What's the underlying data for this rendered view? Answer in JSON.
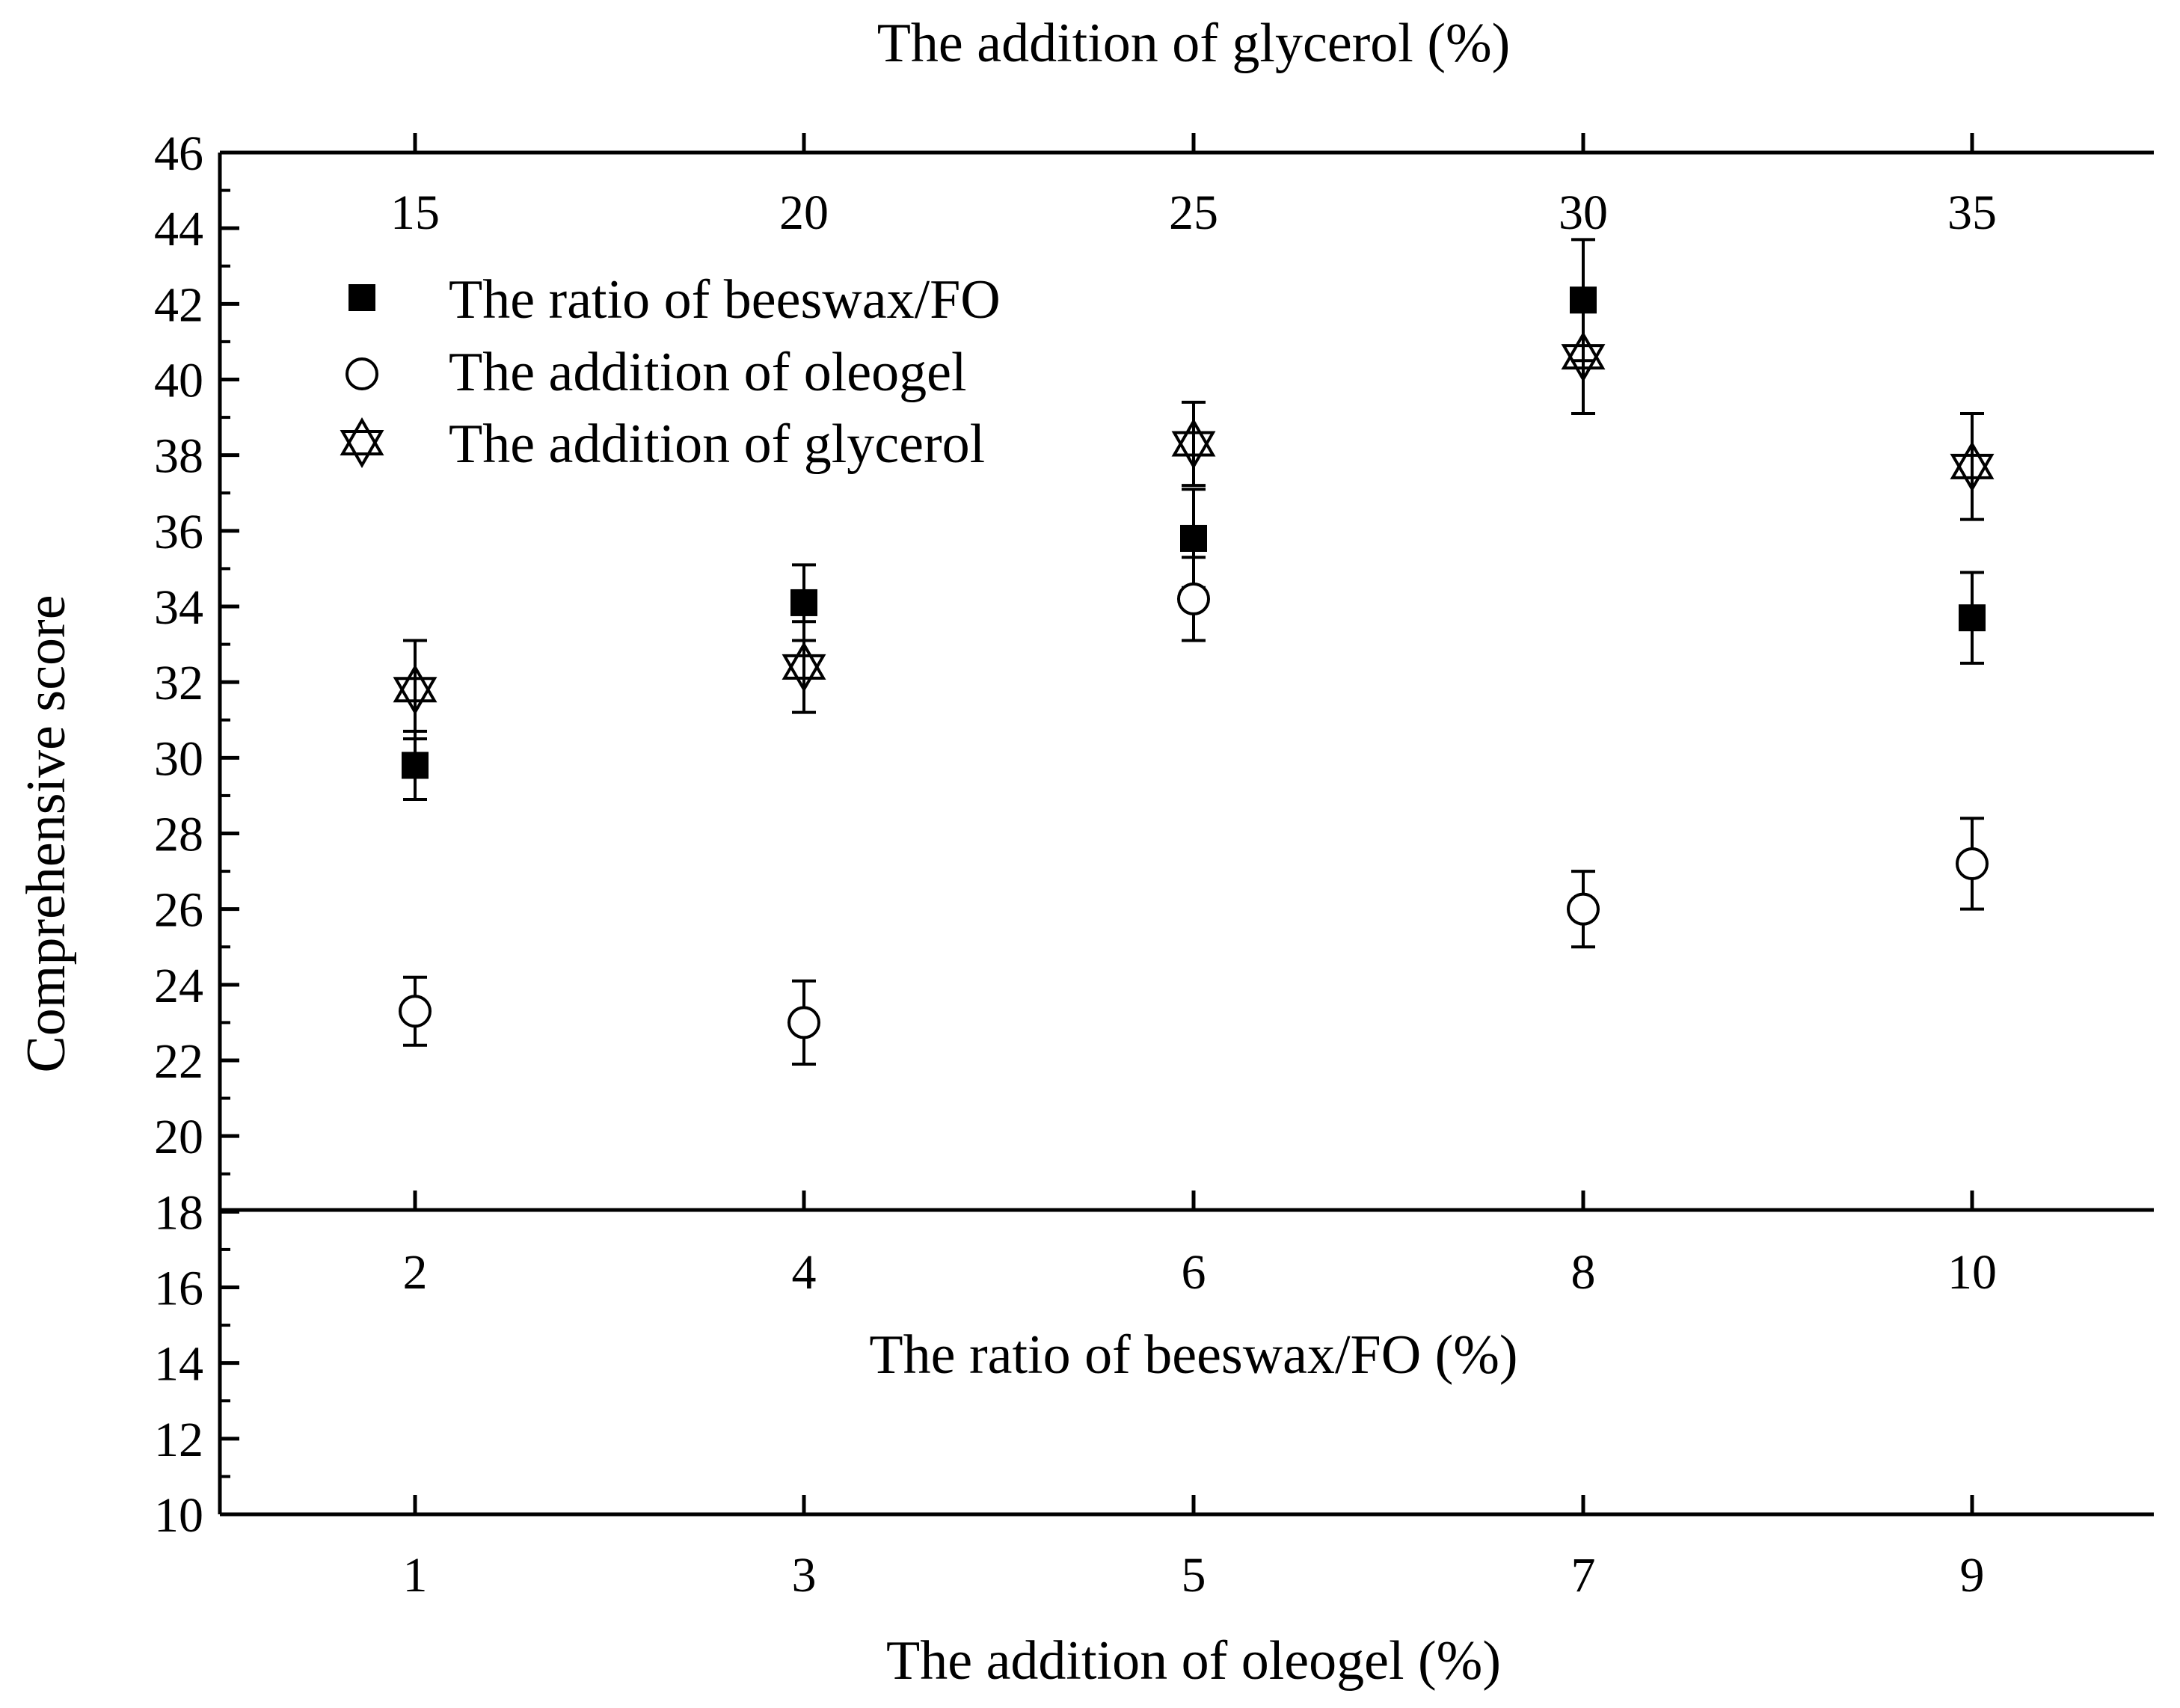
{
  "chart_data": {
    "type": "scatter",
    "ylabel": "Comprehensive score",
    "yticks": [
      10,
      12,
      14,
      16,
      18,
      20,
      22,
      24,
      26,
      28,
      30,
      32,
      34,
      36,
      38,
      40,
      42,
      44,
      46
    ],
    "ylim": [
      10,
      46
    ],
    "x_axes": [
      {
        "id": "top",
        "label": "The addition of glycerol (%)",
        "ticks": [
          "15",
          "20",
          "25",
          "30",
          "35"
        ]
      },
      {
        "id": "middle",
        "label": "The ratio of beeswax/FO (%)",
        "ticks": [
          "2",
          "4",
          "6",
          "8",
          "10"
        ]
      },
      {
        "id": "bottom",
        "label": "The addition of oleogel (%)",
        "ticks": [
          "1",
          "3",
          "5",
          "7",
          "9"
        ]
      }
    ],
    "positions": [
      1,
      2,
      3,
      4,
      5
    ],
    "series": [
      {
        "name": "The ratio of beeswax/FO",
        "marker": "filled-square",
        "axis": "middle",
        "x": [
          "2",
          "4",
          "6",
          "8",
          "10"
        ],
        "y": [
          29.8,
          34.1,
          35.8,
          42.1,
          33.7
        ],
        "err": [
          0.9,
          1.0,
          1.3,
          1.6,
          1.2
        ]
      },
      {
        "name": "The addition of oleogel",
        "marker": "open-circle",
        "axis": "bottom",
        "x": [
          "1",
          "3",
          "5",
          "7",
          "9"
        ],
        "y": [
          23.3,
          23.0,
          34.2,
          26.0,
          27.2
        ],
        "err": [
          0.9,
          1.1,
          1.1,
          1.0,
          1.2
        ]
      },
      {
        "name": "The addition of glycerol",
        "marker": "star",
        "axis": "top",
        "x": [
          "15",
          "20",
          "25",
          "30",
          "35"
        ],
        "y": [
          31.8,
          32.4,
          38.3,
          40.6,
          37.7
        ],
        "err": [
          1.3,
          1.2,
          1.1,
          1.5,
          1.4
        ]
      }
    ],
    "legend_position": "top-left",
    "grid": false
  }
}
